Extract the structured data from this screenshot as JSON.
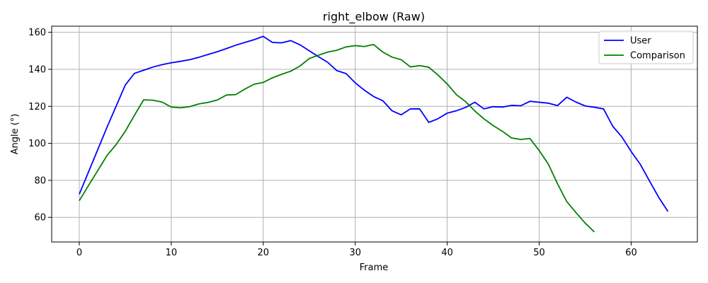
{
  "chart_data": {
    "type": "line",
    "title": "right_elbow (Raw)",
    "xlabel": "Frame",
    "ylabel": "Angle (°)",
    "xlim": [
      -3,
      67.2
    ],
    "ylim": [
      46.7,
      163.3
    ],
    "xticks": [
      0,
      10,
      20,
      30,
      40,
      50,
      60
    ],
    "yticks": [
      60,
      80,
      100,
      120,
      140,
      160
    ],
    "grid": true,
    "legend_position": "top-right",
    "series": [
      {
        "name": "User",
        "color": "#0000ff",
        "x": [
          0,
          1,
          2,
          3,
          4,
          5,
          6,
          7,
          8,
          9,
          10,
          11,
          12,
          13,
          14,
          15,
          16,
          17,
          18,
          19,
          20,
          21,
          22,
          23,
          24,
          25,
          26,
          27,
          28,
          29,
          30,
          31,
          32,
          33,
          34,
          35,
          36,
          37,
          38,
          39,
          40,
          41,
          42,
          43,
          44,
          45,
          46,
          47,
          48,
          49,
          50,
          51,
          52,
          53,
          54,
          55,
          56,
          57,
          58,
          59,
          60,
          61,
          62,
          63,
          64
        ],
        "y": [
          72.5,
          84.5,
          96.5,
          108.5,
          120,
          131.5,
          137.8,
          139.5,
          141.2,
          142.5,
          143.5,
          144.3,
          145.2,
          146.5,
          148,
          149.5,
          151.2,
          153,
          154.5,
          156,
          157.8,
          154.5,
          154.3,
          155.5,
          153.2,
          150,
          146.8,
          143.8,
          139.3,
          137.7,
          132.7,
          128.7,
          125.3,
          123,
          117.6,
          115.4,
          118.6,
          118.6,
          111.3,
          113.3,
          116.3,
          117.6,
          119.4,
          122.2,
          118.6,
          119.8,
          119.6,
          120.5,
          120.3,
          122.7,
          122.2,
          121.7,
          120.4,
          124.9,
          122.3,
          120.2,
          119.5,
          118.6,
          109.2,
          103.4,
          95.6,
          88.6,
          79.6,
          70.8,
          63.2
        ]
      },
      {
        "name": "Comparison",
        "color": "#008000",
        "x": [
          0,
          1,
          2,
          3,
          4,
          5,
          6,
          7,
          8,
          9,
          10,
          11,
          12,
          13,
          14,
          15,
          16,
          17,
          18,
          19,
          20,
          21,
          22,
          23,
          24,
          25,
          26,
          27,
          28,
          29,
          30,
          31,
          32,
          33,
          34,
          35,
          36,
          37,
          38,
          39,
          40,
          41,
          42,
          43,
          44,
          45,
          46,
          47,
          48,
          49,
          50,
          51,
          52,
          53,
          54,
          55,
          56
        ],
        "y": [
          69,
          77.2,
          85.2,
          93.3,
          99.3,
          106.5,
          115.2,
          123.5,
          123.3,
          122.3,
          119.6,
          119.2,
          119.8,
          121.3,
          122.1,
          123.4,
          126.1,
          126.3,
          129.3,
          131.9,
          132.9,
          135.4,
          137.3,
          139,
          141.8,
          145.8,
          147.6,
          149.3,
          150.3,
          152.1,
          152.8,
          152.3,
          153.4,
          149.3,
          146.6,
          145.2,
          141.3,
          142,
          141.1,
          136.9,
          132.1,
          126.3,
          122.5,
          117.5,
          113.2,
          109.6,
          106.5,
          102.9,
          102.1,
          102.6,
          96.1,
          88.7,
          78.1,
          68.5,
          62.6,
          56.9,
          52.1
        ]
      }
    ]
  }
}
